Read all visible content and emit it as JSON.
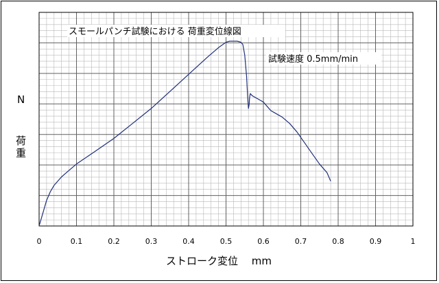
{
  "chart_data": {
    "type": "line",
    "title": "スモールパンチ試験における 荷重変位線図",
    "annotation": "試験速度 0.5mm/min",
    "xlabel": "ストローク変位　 mm",
    "ylabel_chars": [
      "荷",
      "重"
    ],
    "ylabel_unit": "N",
    "xlim": [
      0,
      1
    ],
    "ylim": [
      0,
      1
    ],
    "x_ticks": [
      "0",
      "0.1",
      "0.2",
      "0.3",
      "0.4",
      "0.5",
      "0.6",
      "0.7",
      "0.8",
      "0.9",
      "1"
    ],
    "y_ticks_shown": false,
    "grid": "major and minor",
    "colors": {
      "line": "#1f2f7a",
      "grid_major": "#606060",
      "grid_minor": "#b8b8b8"
    },
    "series": [
      {
        "x": [
          0,
          0.01,
          0.02,
          0.03,
          0.04,
          0.06,
          0.08,
          0.1,
          0.15,
          0.2,
          0.25,
          0.3,
          0.35,
          0.4,
          0.45,
          0.48,
          0.5,
          0.51,
          0.52,
          0.53,
          0.54,
          0.545,
          0.55,
          0.555,
          0.558,
          0.56,
          0.562,
          0.563,
          0.565,
          0.57,
          0.58,
          0.59,
          0.6,
          0.61,
          0.62,
          0.63,
          0.64,
          0.65,
          0.67,
          0.69,
          0.71,
          0.73,
          0.75,
          0.77,
          0.78
        ],
        "y": [
          0,
          0.06,
          0.12,
          0.16,
          0.19,
          0.23,
          0.26,
          0.29,
          0.35,
          0.41,
          0.48,
          0.55,
          0.63,
          0.71,
          0.79,
          0.835,
          0.86,
          0.865,
          0.865,
          0.865,
          0.86,
          0.85,
          0.8,
          0.7,
          0.6,
          0.55,
          0.57,
          0.6,
          0.62,
          0.61,
          0.6,
          0.59,
          0.58,
          0.56,
          0.54,
          0.53,
          0.52,
          0.51,
          0.48,
          0.44,
          0.39,
          0.34,
          0.29,
          0.25,
          0.21
        ]
      }
    ]
  }
}
